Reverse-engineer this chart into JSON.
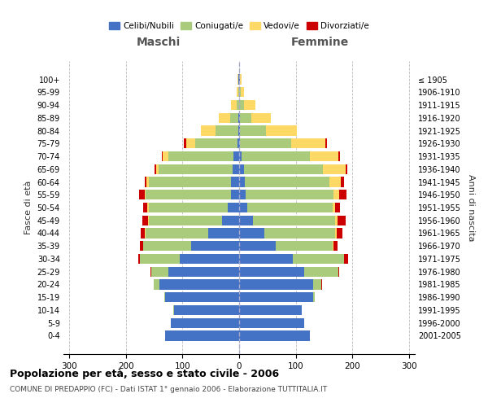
{
  "age_groups": [
    "0-4",
    "5-9",
    "10-14",
    "15-19",
    "20-24",
    "25-29",
    "30-34",
    "35-39",
    "40-44",
    "45-49",
    "50-54",
    "55-59",
    "60-64",
    "65-69",
    "70-74",
    "75-79",
    "80-84",
    "85-89",
    "90-94",
    "95-99",
    "100+"
  ],
  "birth_years": [
    "2001-2005",
    "1996-2000",
    "1991-1995",
    "1986-1990",
    "1981-1985",
    "1976-1980",
    "1971-1975",
    "1966-1970",
    "1961-1965",
    "1956-1960",
    "1951-1955",
    "1946-1950",
    "1941-1945",
    "1936-1940",
    "1931-1935",
    "1926-1930",
    "1921-1925",
    "1916-1920",
    "1911-1915",
    "1906-1910",
    "≤ 1905"
  ],
  "colors": {
    "celibi": "#4472C4",
    "coniugati": "#AACB7C",
    "vedovi": "#FFD966",
    "divorziati": "#CC0000"
  },
  "maschi": {
    "celibi": [
      130,
      120,
      115,
      130,
      140,
      125,
      105,
      85,
      55,
      30,
      20,
      15,
      15,
      12,
      10,
      3,
      2,
      1,
      0,
      0,
      1
    ],
    "coniugati": [
      0,
      0,
      1,
      2,
      10,
      30,
      70,
      85,
      110,
      130,
      140,
      150,
      145,
      130,
      115,
      75,
      40,
      15,
      5,
      2,
      1
    ],
    "vedovi": [
      0,
      0,
      0,
      0,
      0,
      0,
      0,
      0,
      1,
      1,
      2,
      2,
      3,
      5,
      10,
      15,
      25,
      20,
      10,
      3,
      1
    ],
    "divorziati": [
      0,
      0,
      0,
      0,
      1,
      2,
      3,
      5,
      8,
      10,
      8,
      10,
      3,
      2,
      2,
      5,
      0,
      0,
      0,
      0,
      0
    ]
  },
  "femmine": {
    "celibi": [
      125,
      115,
      110,
      130,
      130,
      115,
      95,
      65,
      45,
      25,
      15,
      12,
      10,
      8,
      5,
      2,
      2,
      1,
      0,
      0,
      1
    ],
    "coniugati": [
      0,
      0,
      1,
      3,
      15,
      60,
      90,
      100,
      125,
      145,
      150,
      155,
      150,
      140,
      120,
      90,
      45,
      20,
      8,
      3,
      1
    ],
    "vedovi": [
      0,
      0,
      0,
      0,
      0,
      0,
      0,
      1,
      2,
      3,
      5,
      10,
      20,
      40,
      50,
      60,
      55,
      35,
      20,
      5,
      2
    ],
    "divorziati": [
      0,
      0,
      0,
      0,
      1,
      2,
      8,
      8,
      10,
      15,
      8,
      12,
      5,
      3,
      3,
      3,
      0,
      0,
      0,
      0,
      0
    ]
  },
  "xlim": 310,
  "title": "Popolazione per età, sesso e stato civile - 2006",
  "subtitle": "COMUNE DI PREDAPPIO (FC) - Dati ISTAT 1° gennaio 2006 - Elaborazione TUTTITALIA.IT",
  "ylabel_left": "Fasce di età",
  "ylabel_right": "Anni di nascita",
  "xlabel_left": "Maschi",
  "xlabel_right": "Femmine",
  "legend_labels": [
    "Celibi/Nubili",
    "Coniugati/e",
    "Vedovi/e",
    "Divorziati/e"
  ],
  "bg_color": "#FFFFFF",
  "grid_color": "#BBBBBB"
}
